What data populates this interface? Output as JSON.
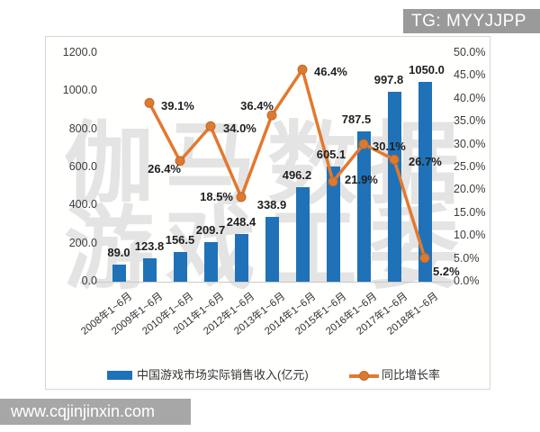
{
  "overlays": {
    "tg_badge": "TG: MYYJJPP",
    "url_bar": "www.cqjinjinxin.com"
  },
  "watermark": {
    "line1": "伽马数据",
    "line2": "游戏工委"
  },
  "colors": {
    "bar": "#1f72b8",
    "line": "#e2792f",
    "marker": "#db7b31",
    "marker_edge": "#c4692a",
    "badge_bg": "#9a9a9a",
    "urlbar_bg": "#a7a7a7",
    "watermark": "#e4e4e4"
  },
  "chart_data": {
    "type": "bar",
    "combo": "bar+line",
    "grid": false,
    "legend_position": "bottom",
    "categories": [
      "2008年1~6月",
      "2009年1~6月",
      "2010年1~6月",
      "2011年1~6月",
      "2012年1~6月",
      "2013年1~6月",
      "2014年1~6月",
      "2015年1~6月",
      "2016年1~6月",
      "2017年1~6月",
      "2018年1~6月"
    ],
    "series": [
      {
        "name": "中国游戏市场实际销售收入(亿元)",
        "type": "bar",
        "axis": "left",
        "values": [
          89.0,
          123.8,
          156.5,
          209.7,
          248.4,
          338.9,
          496.2,
          605.1,
          787.5,
          997.8,
          1050.0
        ],
        "labels": [
          "89.0",
          "123.8",
          "156.5",
          "209.7",
          "248.4",
          "338.9",
          "496.2",
          "605.1",
          "787.5",
          "997.8",
          "1050.0"
        ],
        "label_dx": [
          0,
          0,
          0,
          0,
          0,
          0,
          -6,
          -2,
          -8,
          -6,
          2
        ]
      },
      {
        "name": "同比增长率",
        "type": "line",
        "axis": "right",
        "points": [
          null,
          {
            "value": 39.1,
            "label": "39.1%",
            "align": "left",
            "dx": 13,
            "dy": -4
          },
          {
            "value": 26.4,
            "label": "26.4%",
            "align": "right",
            "dx": 1,
            "dy": 1
          },
          {
            "value": 34.0,
            "label": "34.0%",
            "align": "left",
            "dx": 14,
            "dy": -5
          },
          {
            "value": 18.5,
            "label": "18.5%",
            "align": "right",
            "dx": -9,
            "dy": -8
          },
          {
            "value": 36.4,
            "label": "36.4%",
            "align": "right",
            "dx": 2,
            "dy": -18
          },
          {
            "value": 46.4,
            "label": "46.4%",
            "align": "left",
            "dx": 13,
            "dy": -5
          },
          {
            "value": 21.9,
            "label": "21.9%",
            "align": "left",
            "dx": 13,
            "dy": -10
          },
          {
            "value": 30.1,
            "label": "30.1%",
            "align": "left",
            "dx": 10,
            "dy": -5
          },
          {
            "value": 26.7,
            "label": "26.7%",
            "align": "left",
            "dx": 16,
            "dy": -5
          },
          {
            "value": 5.2,
            "label": "5.2%",
            "align": "left",
            "dx": 9,
            "dy": 7
          }
        ]
      }
    ],
    "left_axis": {
      "min": 0,
      "max": 1200,
      "step": 200,
      "ticks": [
        {
          "label": "1200.0",
          "value": 1200
        },
        {
          "label": "1000.0",
          "value": 1000
        },
        {
          "label": "800.0",
          "value": 800
        },
        {
          "label": "600.0",
          "value": 600
        },
        {
          "label": "400.0",
          "value": 400
        },
        {
          "label": "200.0",
          "value": 200
        },
        {
          "label": "0.0",
          "value": 0
        }
      ]
    },
    "right_axis": {
      "min": 0,
      "max": 50,
      "step": 5,
      "ticks": [
        {
          "label": "50.0%",
          "value": 50
        },
        {
          "label": "45.0%",
          "value": 45
        },
        {
          "label": "40.0%",
          "value": 40
        },
        {
          "label": "35.0%",
          "value": 35
        },
        {
          "label": "30.0%",
          "value": 30
        },
        {
          "label": "25.0%",
          "value": 25
        },
        {
          "label": "20.0%",
          "value": 20
        },
        {
          "label": "15.0%",
          "value": 15
        },
        {
          "label": "10.0%",
          "value": 10
        },
        {
          "label": "5.0%",
          "value": 5
        },
        {
          "label": "0.0%",
          "value": 0
        }
      ]
    }
  }
}
